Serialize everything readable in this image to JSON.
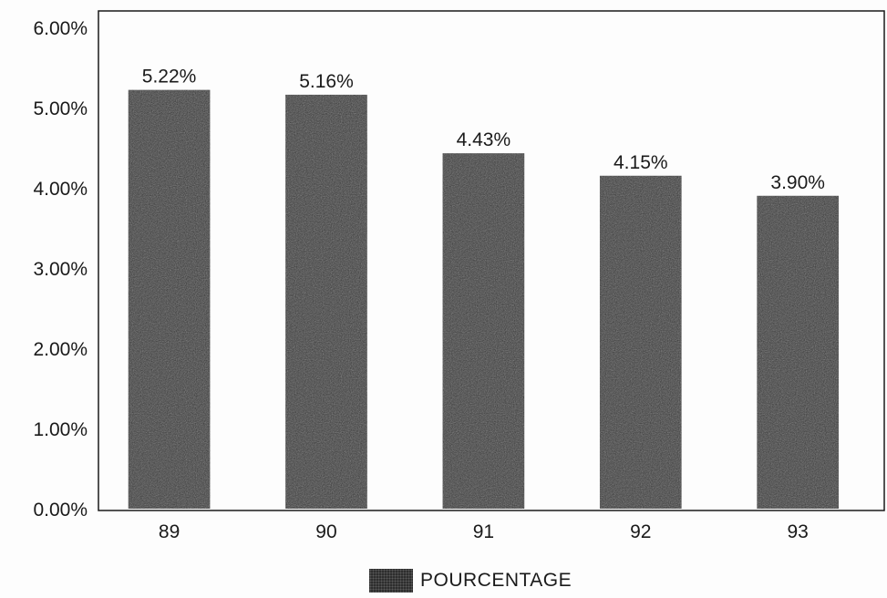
{
  "chart_data": {
    "type": "bar",
    "categories": [
      "89",
      "90",
      "91",
      "92",
      "93"
    ],
    "series": [
      {
        "name": "POURCENTAGE",
        "values": [
          5.22,
          5.16,
          4.43,
          4.15,
          3.9
        ]
      }
    ],
    "data_labels": [
      "5.22%",
      "5.16%",
      "4.43%",
      "4.15%",
      "3.90%"
    ],
    "y_ticks": [
      "0.00%",
      "1.00%",
      "2.00%",
      "3.00%",
      "4.00%",
      "5.00%",
      "6.00%"
    ],
    "ylim": [
      0,
      6
    ],
    "grid": false,
    "legend_position": "bottom",
    "bar_color": "#2e2e2e"
  }
}
